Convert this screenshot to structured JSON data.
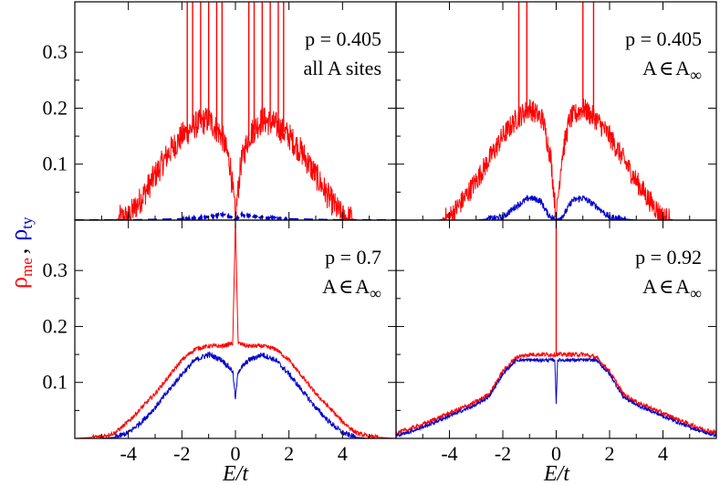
{
  "shared_axes": {
    "xlabel": "E/t",
    "ylabel_parts": {
      "me_symbol": "ρ",
      "me_sub": "me",
      "separator": ",",
      "ty_symbol": "ρ",
      "ty_sub": "ty"
    },
    "xlim": [
      -6,
      6
    ],
    "ylim": [
      0,
      0.39
    ],
    "xticks": [
      -4,
      -2,
      0,
      2,
      4
    ],
    "xtick_labels": [
      "-4",
      "-2",
      "0",
      "2",
      "4"
    ],
    "yticks": [
      0.1,
      0.2,
      0.3
    ],
    "ytick_labels": [
      "0.1",
      "0.2",
      "0.3"
    ]
  },
  "colors": {
    "me": "#ff0000",
    "ty": "#0000cc"
  },
  "chart_data": [
    {
      "type": "line",
      "panel": "top-left",
      "annotation": {
        "line1": "p = 0.405",
        "line2": "all A sites"
      },
      "series": [
        {
          "key": "me",
          "style": "solid",
          "x": [
            -6,
            -4.6,
            -4,
            -3.5,
            -3,
            -2.5,
            -2,
            -1.5,
            -1,
            -0.5,
            -0.2,
            -0.05,
            0,
            0.05,
            0.2,
            0.5,
            1,
            1.5,
            2,
            2.5,
            3,
            3.5,
            4,
            4.6,
            6
          ],
          "y": [
            0,
            0,
            0.005,
            0.04,
            0.08,
            0.12,
            0.15,
            0.17,
            0.18,
            0.15,
            0.1,
            0.03,
            0.0,
            0.03,
            0.1,
            0.15,
            0.18,
            0.17,
            0.15,
            0.12,
            0.08,
            0.04,
            0.005,
            0,
            0
          ],
          "spikes": [
            [
              -1.8,
              0.39
            ],
            [
              -1.6,
              0.39
            ],
            [
              -1.3,
              0.39
            ],
            [
              -1.0,
              0.39
            ],
            [
              -0.7,
              0.39
            ],
            [
              -0.5,
              0.39
            ],
            [
              0.5,
              0.39
            ],
            [
              0.7,
              0.39
            ],
            [
              1.0,
              0.39
            ],
            [
              1.3,
              0.39
            ],
            [
              1.6,
              0.39
            ],
            [
              1.8,
              0.39
            ]
          ],
          "noise": 0.025
        },
        {
          "key": "ty",
          "style": "dashed",
          "x": [
            -6,
            -4,
            -2,
            -1,
            -0.5,
            -0.2,
            0,
            0.2,
            0.5,
            1,
            2,
            4,
            6
          ],
          "y": [
            0,
            0,
            0.002,
            0.006,
            0.01,
            0.006,
            0.0,
            0.01,
            0.008,
            0.005,
            0.002,
            0,
            0
          ],
          "noise": 0.002
        }
      ]
    },
    {
      "type": "line",
      "panel": "top-right",
      "annotation": {
        "line1": "p = 0.405",
        "line2_pre": "A",
        "line2_in": "∈",
        "line2_set": "A",
        "line2_sub": "∞"
      },
      "series": [
        {
          "key": "me",
          "style": "solid",
          "x": [
            -6,
            -4.4,
            -4,
            -3.5,
            -3,
            -2.5,
            -2,
            -1.5,
            -1,
            -0.5,
            -0.2,
            -0.05,
            0,
            0.05,
            0.2,
            0.5,
            1,
            1.5,
            2,
            2.5,
            3,
            3.5,
            4,
            4.4,
            6
          ],
          "y": [
            0,
            0,
            0.005,
            0.035,
            0.07,
            0.11,
            0.15,
            0.18,
            0.2,
            0.18,
            0.11,
            0.03,
            0.0,
            0.03,
            0.11,
            0.18,
            0.2,
            0.18,
            0.15,
            0.11,
            0.07,
            0.035,
            0.005,
            0,
            0
          ],
          "spikes": [
            [
              -1.4,
              0.39
            ],
            [
              -1.1,
              0.39
            ],
            [
              1.0,
              0.39
            ],
            [
              1.4,
              0.39
            ]
          ],
          "noise": 0.02
        },
        {
          "key": "ty",
          "style": "solid",
          "x": [
            -6,
            -3,
            -2,
            -1.5,
            -1,
            -0.6,
            -0.3,
            0,
            0.3,
            0.6,
            1,
            1.5,
            2,
            3,
            6
          ],
          "y": [
            0,
            0,
            0.005,
            0.025,
            0.04,
            0.035,
            0.01,
            0.0,
            0.01,
            0.035,
            0.04,
            0.025,
            0.005,
            0,
            0
          ],
          "noise": 0.006
        }
      ]
    },
    {
      "type": "line",
      "panel": "bottom-left",
      "annotation": {
        "line1": "p = 0.7",
        "line2_pre": "A",
        "line2_in": "∈",
        "line2_set": "A",
        "line2_sub": "∞"
      },
      "series": [
        {
          "key": "me",
          "style": "solid",
          "x": [
            -6,
            -5,
            -4.5,
            -4,
            -3.5,
            -3,
            -2.5,
            -2,
            -1.5,
            -1,
            -0.5,
            -0.1,
            0,
            0.1,
            0.5,
            1,
            1.5,
            2,
            2.5,
            3,
            3.5,
            4,
            4.5,
            5,
            6
          ],
          "y": [
            0,
            0.003,
            0.01,
            0.03,
            0.055,
            0.08,
            0.11,
            0.14,
            0.16,
            0.165,
            0.165,
            0.17,
            0.39,
            0.17,
            0.165,
            0.165,
            0.16,
            0.14,
            0.11,
            0.08,
            0.055,
            0.03,
            0.01,
            0.003,
            0
          ],
          "noise": 0.004
        },
        {
          "key": "ty",
          "style": "solid",
          "x": [
            -6,
            -5,
            -4.5,
            -4,
            -3.5,
            -3,
            -2.5,
            -2,
            -1.5,
            -1,
            -0.5,
            -0.1,
            0,
            0.1,
            0.5,
            1,
            1.5,
            2,
            2.5,
            3,
            3.5,
            4,
            4.5,
            5,
            6
          ],
          "y": [
            0,
            0,
            0.002,
            0.01,
            0.03,
            0.055,
            0.085,
            0.115,
            0.14,
            0.15,
            0.14,
            0.12,
            0.07,
            0.12,
            0.14,
            0.15,
            0.14,
            0.115,
            0.085,
            0.055,
            0.03,
            0.01,
            0.002,
            0,
            0
          ],
          "noise": 0.005
        }
      ]
    },
    {
      "type": "line",
      "panel": "bottom-right",
      "annotation": {
        "line1": "p = 0.92",
        "line2_pre": "A",
        "line2_in": "∈",
        "line2_set": "A",
        "line2_sub": "∞"
      },
      "series": [
        {
          "key": "me",
          "style": "solid",
          "x": [
            -6,
            -5.6,
            -5,
            -4,
            -3,
            -2.5,
            -2,
            -1.5,
            -1,
            0,
            1,
            1.5,
            2,
            2.5,
            3,
            4,
            5,
            5.6,
            6
          ],
          "y": [
            0.01,
            0.015,
            0.025,
            0.045,
            0.065,
            0.08,
            0.12,
            0.145,
            0.15,
            0.15,
            0.15,
            0.145,
            0.12,
            0.08,
            0.065,
            0.045,
            0.025,
            0.015,
            0.01
          ],
          "spikes": [
            [
              0,
              0.39
            ]
          ],
          "noise": 0.004
        },
        {
          "key": "ty",
          "style": "solid",
          "x": [
            -6,
            -5.6,
            -5,
            -4,
            -3,
            -2.5,
            -2,
            -1.5,
            -1,
            -0.05,
            0,
            0.05,
            1,
            1.5,
            2,
            2.5,
            3,
            4,
            5,
            5.6,
            6
          ],
          "y": [
            0.005,
            0.01,
            0.02,
            0.04,
            0.06,
            0.075,
            0.115,
            0.14,
            0.14,
            0.14,
            0.06,
            0.14,
            0.14,
            0.14,
            0.115,
            0.075,
            0.06,
            0.04,
            0.02,
            0.01,
            0.005
          ],
          "noise": 0.003
        }
      ]
    }
  ]
}
